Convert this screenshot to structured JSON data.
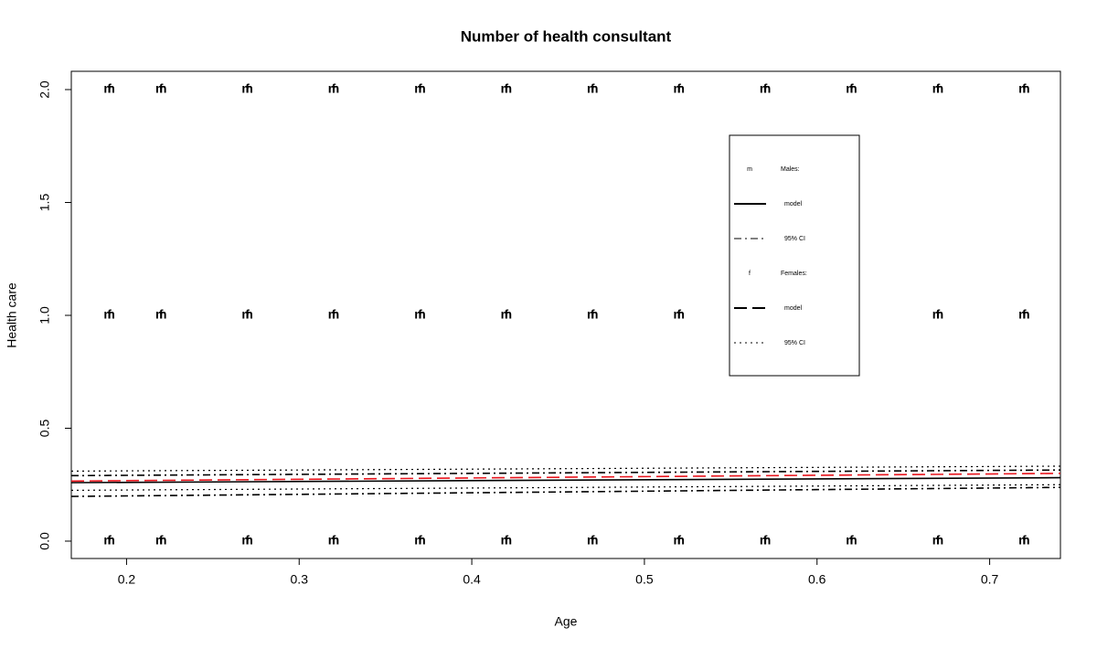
{
  "chart_data": {
    "type": "scatter",
    "title": "Number of health consultant",
    "x_label": "Age",
    "y_label": "Health care",
    "xlim": [
      0.168,
      0.741
    ],
    "ylim": [
      -0.077,
      2.081
    ],
    "xticks": [
      0.2,
      0.3,
      0.4,
      0.5,
      0.6,
      0.7
    ],
    "yticks": [
      {
        "value": 0,
        "label": "0.0"
      },
      {
        "value": 0.5,
        "label": "0.5"
      },
      {
        "value": 1,
        "label": "1.0"
      },
      {
        "value": 1.5,
        "label": "1.5"
      },
      {
        "value": 2,
        "label": "2.0"
      }
    ],
    "series": [
      {
        "name": "Males:",
        "symbol": "m",
        "color": "#000000",
        "x": [
          0.19,
          0.22,
          0.27,
          0.32,
          0.37,
          0.42,
          0.47,
          0.52,
          0.57,
          0.62,
          0.67,
          0.72,
          0.19,
          0.22,
          0.27,
          0.32,
          0.37,
          0.42,
          0.47,
          0.52,
          0.67,
          0.72,
          0.19,
          0.22,
          0.27,
          0.32,
          0.37,
          0.42,
          0.47,
          0.52,
          0.57,
          0.62,
          0.67,
          0.72
        ],
        "values": [
          0,
          0,
          0,
          0,
          0,
          0,
          0,
          0,
          0,
          0,
          0,
          0,
          1,
          1,
          1,
          1,
          1,
          1,
          1,
          1,
          1,
          1,
          2,
          2,
          2,
          2,
          2,
          2,
          2,
          2,
          2,
          2,
          2,
          2
        ]
      },
      {
        "name": "Females:",
        "symbol": "f",
        "color": "#000000",
        "x": [
          0.19,
          0.22,
          0.27,
          0.32,
          0.37,
          0.42,
          0.47,
          0.52,
          0.57,
          0.62,
          0.67,
          0.72,
          0.19,
          0.22,
          0.27,
          0.32,
          0.37,
          0.42,
          0.47,
          0.52,
          0.67,
          0.72,
          0.19,
          0.22,
          0.27,
          0.32,
          0.37,
          0.42,
          0.47,
          0.52,
          0.57,
          0.62,
          0.67,
          0.72
        ],
        "values": [
          0,
          0,
          0,
          0,
          0,
          0,
          0,
          0,
          0,
          0,
          0,
          0,
          1,
          1,
          1,
          1,
          1,
          1,
          1,
          1,
          1,
          1,
          2,
          2,
          2,
          2,
          2,
          2,
          2,
          2,
          2,
          2,
          2,
          2
        ]
      }
    ],
    "lines": [
      {
        "name": "model",
        "group": 0,
        "style": "solid",
        "color": "#000000",
        "x": [
          0.168,
          0.741
        ],
        "values": [
          0.259,
          0.281
        ]
      },
      {
        "name": "95% CI",
        "group": 0,
        "style": "dashdot",
        "color": "#000000",
        "x": [
          0.168,
          0.741
        ],
        "values": [
          0.198,
          0.238
        ]
      },
      {
        "name": "95% CI",
        "group": 0,
        "style": "dashdot",
        "color": "#000000",
        "x": [
          0.168,
          0.741
        ],
        "values": [
          0.29,
          0.315
        ]
      },
      {
        "name": "model",
        "group": 1,
        "style": "longdash",
        "color": "#e8141c",
        "x": [
          0.168,
          0.741
        ],
        "values": [
          0.266,
          0.3
        ]
      },
      {
        "name": "95% CI",
        "group": 1,
        "style": "dotted",
        "color": "#000000",
        "x": [
          0.168,
          0.741
        ],
        "values": [
          0.225,
          0.25
        ]
      },
      {
        "name": "95% CI",
        "group": 1,
        "style": "dotted",
        "color": "#000000",
        "x": [
          0.168,
          0.741
        ],
        "values": [
          0.31,
          0.332
        ]
      }
    ],
    "legend_position": "top-right"
  }
}
